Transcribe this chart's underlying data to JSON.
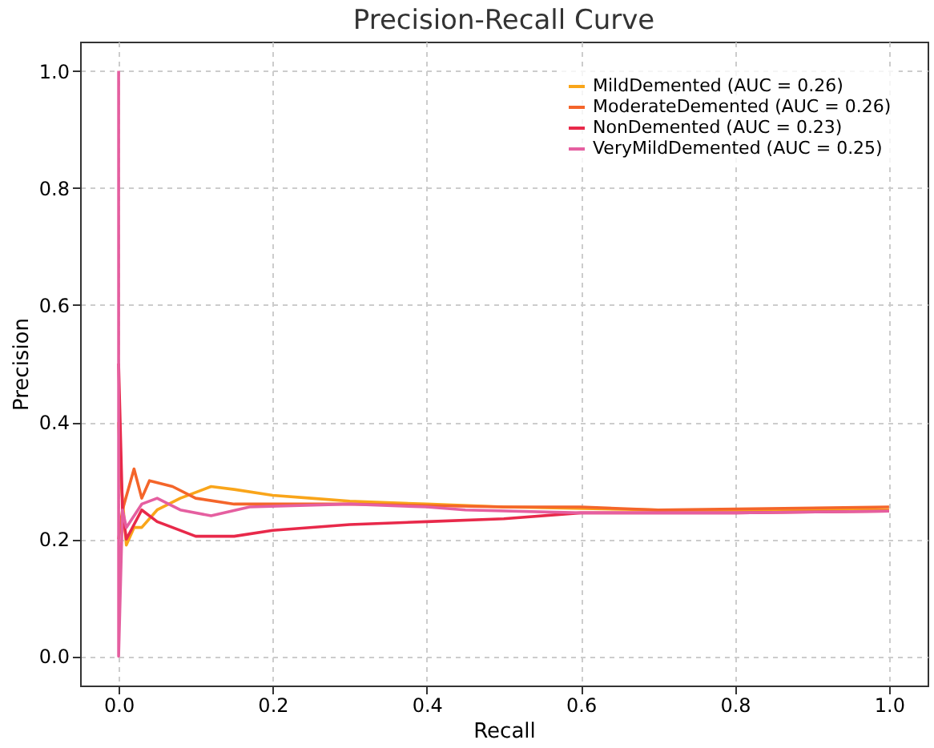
{
  "chart_data": {
    "type": "line",
    "title": "Precision-Recall Curve",
    "xlabel": "Recall",
    "ylabel": "Precision",
    "xlim": [
      -0.05,
      1.05
    ],
    "ylim": [
      -0.05,
      1.05
    ],
    "xticks": [
      {
        "value": 0,
        "label": "0.0"
      },
      {
        "value": 0.2,
        "label": "0.2"
      },
      {
        "value": 0.4,
        "label": "0.4"
      },
      {
        "value": 0.6,
        "label": "0.6"
      },
      {
        "value": 0.8,
        "label": "0.8"
      },
      {
        "value": 1,
        "label": "1.0"
      }
    ],
    "yticks": [
      {
        "value": 0,
        "label": "0.0"
      },
      {
        "value": 0.2,
        "label": "0.2"
      },
      {
        "value": 0.4,
        "label": "0.4"
      },
      {
        "value": 0.6,
        "label": "0.6"
      },
      {
        "value": 0.8,
        "label": "0.8"
      },
      {
        "value": 1,
        "label": "1.0"
      }
    ],
    "grid": true,
    "legend": "top right",
    "line_style": "solid",
    "marker": "none",
    "series": [
      {
        "name": "MildDemented (AUC = 0.26)",
        "color": "#f9a51a",
        "x": [
          0,
          0.003,
          0.01,
          0.02,
          0.03,
          0.05,
          0.08,
          0.12,
          0.15,
          0.2,
          0.25,
          0.3,
          0.4,
          0.5,
          0.7,
          1.0
        ],
        "values": [
          0.4,
          0.3,
          0.19,
          0.22,
          0.22,
          0.25,
          0.27,
          0.29,
          0.285,
          0.275,
          0.27,
          0.265,
          0.26,
          0.255,
          0.25,
          0.25
        ]
      },
      {
        "name": "ModerateDemented (AUC = 0.26)",
        "color": "#f4652a",
        "x": [
          0,
          0.005,
          0.02,
          0.03,
          0.04,
          0.07,
          0.1,
          0.15,
          0.3,
          0.5,
          0.6,
          0.7,
          1.0
        ],
        "values": [
          0.2,
          0.25,
          0.32,
          0.27,
          0.3,
          0.29,
          0.27,
          0.26,
          0.26,
          0.255,
          0.255,
          0.25,
          0.255
        ]
      },
      {
        "name": "NonDemented (AUC = 0.23)",
        "color": "#e8294a",
        "x": [
          0,
          0.005,
          0.01,
          0.03,
          0.05,
          0.07,
          0.1,
          0.15,
          0.2,
          0.3,
          0.4,
          0.5,
          0.6,
          0.8,
          1.0
        ],
        "values": [
          0.5,
          0.25,
          0.2,
          0.25,
          0.23,
          0.22,
          0.205,
          0.205,
          0.215,
          0.225,
          0.23,
          0.235,
          0.245,
          0.245,
          0.248
        ]
      },
      {
        "name": "VeryMildDemented (AUC = 0.25)",
        "color": "#e55fa0",
        "x": [
          0,
          0,
          0.005,
          0.01,
          0.03,
          0.05,
          0.08,
          0.12,
          0.17,
          0.3,
          0.4,
          0.45,
          0.6,
          0.8,
          1.0
        ],
        "values": [
          1.0,
          0.0,
          0.25,
          0.22,
          0.26,
          0.27,
          0.25,
          0.24,
          0.255,
          0.26,
          0.255,
          0.25,
          0.245,
          0.245,
          0.248
        ]
      }
    ]
  }
}
